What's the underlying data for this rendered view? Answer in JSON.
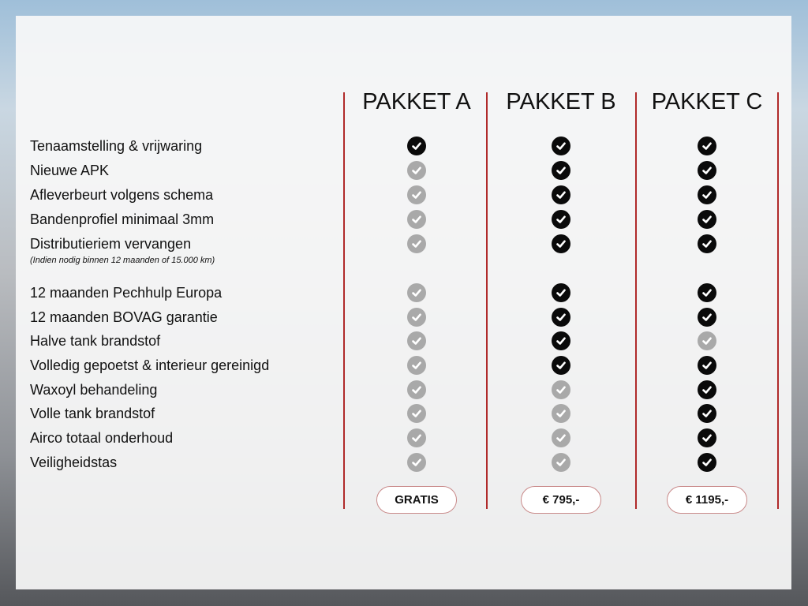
{
  "packages": [
    {
      "title": "PAKKET A",
      "price": "GRATIS"
    },
    {
      "title": "PAKKET B",
      "price": "€ 795,-"
    },
    {
      "title": "PAKKET C",
      "price": "€ 1195,-"
    }
  ],
  "note": "(Indien nodig binnen 12 maanden of 15.000 km)",
  "features": [
    {
      "label": "Tenaamstelling & vrijwaring",
      "included": [
        true,
        true,
        true
      ]
    },
    {
      "label": "Nieuwe APK",
      "included": [
        false,
        true,
        true
      ]
    },
    {
      "label": "Afleverbeurt volgens schema",
      "included": [
        false,
        true,
        true
      ]
    },
    {
      "label": "Bandenprofiel minimaal 3mm",
      "included": [
        false,
        true,
        true
      ]
    },
    {
      "label": "Distributieriem vervangen",
      "included": [
        false,
        true,
        true
      ]
    },
    {
      "label": "12 maanden Pechhulp Europa",
      "included": [
        false,
        true,
        true
      ]
    },
    {
      "label": "12 maanden BOVAG garantie",
      "included": [
        false,
        true,
        true
      ]
    },
    {
      "label": "Halve tank brandstof",
      "included": [
        false,
        true,
        false
      ]
    },
    {
      "label": "Volledig gepoetst & interieur gereinigd",
      "included": [
        false,
        true,
        true
      ]
    },
    {
      "label": "Waxoyl behandeling",
      "included": [
        false,
        false,
        true
      ]
    },
    {
      "label": "Volle tank brandstof",
      "included": [
        false,
        false,
        true
      ]
    },
    {
      "label": "Airco totaal onderhoud",
      "included": [
        false,
        false,
        true
      ]
    },
    {
      "label": "Veiligheidstas",
      "included": [
        false,
        false,
        true
      ]
    }
  ],
  "colors": {
    "included": "#0a0a0a",
    "not_included": "#a9a9a9",
    "divider": "#b02a2a"
  }
}
